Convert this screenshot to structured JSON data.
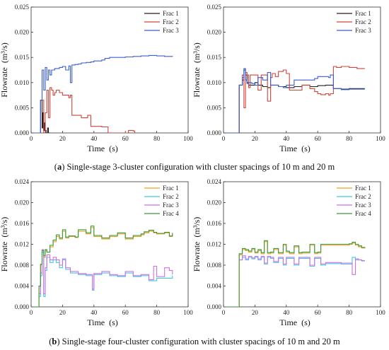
{
  "captions": {
    "a_letter": "a",
    "a_text": " Single-stage 3-cluster configuration with cluster spacings of 10 m and 20 m",
    "b_letter": "b",
    "b_text": " Single-stage four-cluster configuration with cluster spacings of 10 m and 20 m"
  },
  "colors": {
    "frac1_a": "#222222",
    "frac2_a": "#d0443a",
    "frac3_a": "#3a5fcd",
    "frac1_b": "#f0a020",
    "frac2_b": "#40c8e8",
    "frac3_b": "#d070e0",
    "frac4_b": "#3a9a3a"
  },
  "chart_data": [
    {
      "type": "line",
      "xlabel": "Time  (s)",
      "ylabel": "Flowrate  (m³/s)",
      "xlim": [
        0,
        100
      ],
      "ylim": [
        0,
        0.025
      ],
      "xticks": [
        "0",
        "20",
        "40",
        "60",
        "80",
        "100"
      ],
      "yticks": [
        "0.000",
        "0.005",
        "0.010",
        "0.015",
        "0.020",
        "0.025"
      ],
      "legend": "top-right",
      "series": [
        {
          "name": "Frac 1",
          "x": [
            0,
            6,
            7,
            7.5,
            8,
            8.5,
            9,
            9.5,
            10,
            10.5,
            11,
            12
          ],
          "y": [
            0,
            0.0065,
            0.001,
            0.004,
            0.0005,
            0.002,
            0.0005,
            0.0,
            0.0,
            0.001,
            0.0,
            0.0
          ]
        },
        {
          "name": "Frac 2",
          "x": [
            6,
            8,
            9,
            10,
            11,
            12,
            13,
            14,
            15,
            16,
            18,
            20,
            22,
            24,
            25,
            26,
            28,
            30,
            32,
            35,
            36,
            38,
            40,
            42,
            45,
            47,
            49,
            50,
            60,
            62,
            65,
            66
          ],
          "y": [
            0.0065,
            0.0,
            0.004,
            0.0085,
            0.003,
            0.009,
            0.0085,
            0.0075,
            0.008,
            0.0085,
            0.008,
            0.0075,
            0.0075,
            0.007,
            0.0075,
            0.0035,
            0.0035,
            0.0035,
            0.003,
            0.003,
            0.0035,
            0.0013,
            0.0013,
            0.0013,
            0.0012,
            0.0012,
            0.0,
            0.0,
            0.0,
            0.0005,
            0.0004,
            0.0
          ]
        },
        {
          "name": "Frac 3",
          "x": [
            0,
            6,
            7,
            8,
            9,
            10,
            11,
            12,
            13,
            15,
            18,
            20,
            22,
            24,
            25,
            26,
            28,
            30,
            32,
            35,
            38,
            40,
            45,
            47,
            50,
            55,
            60,
            65,
            70,
            75,
            80,
            85,
            90
          ],
          "y": [
            0,
            0.0065,
            0.0125,
            0.0085,
            0.013,
            0.0105,
            0.0125,
            0.0115,
            0.0125,
            0.0128,
            0.013,
            0.0132,
            0.0125,
            0.0133,
            0.01,
            0.0135,
            0.0136,
            0.0137,
            0.0139,
            0.014,
            0.0141,
            0.0143,
            0.0145,
            0.0148,
            0.015,
            0.015,
            0.0151,
            0.0152,
            0.0153,
            0.0154,
            0.0153,
            0.0152,
            0.0153
          ]
        }
      ]
    },
    {
      "type": "line",
      "xlabel": "Time  (s)",
      "ylabel": "Flowrate  (m³/s)",
      "xlim": [
        0,
        100
      ],
      "ylim": [
        0,
        0.025
      ],
      "xticks": [
        "0",
        "20",
        "40",
        "60",
        "80",
        "100"
      ],
      "yticks": [
        "0.000",
        "0.005",
        "0.010",
        "0.015",
        "0.020",
        "0.025"
      ],
      "legend": "top-right",
      "series": [
        {
          "name": "Frac 1",
          "x": [
            0,
            10,
            12,
            13,
            14,
            15,
            16,
            18,
            20,
            22,
            25,
            28,
            30,
            35,
            40,
            45,
            50,
            55,
            60,
            65,
            68,
            70,
            75,
            80,
            85,
            90
          ],
          "y": [
            0,
            0.0095,
            0.0105,
            0.0125,
            0.0115,
            0.01,
            0.0095,
            0.0095,
            0.01,
            0.0095,
            0.0092,
            0.009,
            0.0095,
            0.0092,
            0.009,
            0.0092,
            0.0095,
            0.0092,
            0.0094,
            0.0095,
            0.0095,
            0.0088,
            0.0087,
            0.0088,
            0.0088,
            0.0088
          ]
        },
        {
          "name": "Frac 2",
          "x": [
            0,
            10,
            12,
            13,
            14,
            15,
            16,
            17,
            20,
            22,
            24,
            26,
            28,
            30,
            31,
            33,
            35,
            38,
            40,
            42,
            45,
            50,
            55,
            58,
            60,
            62,
            65,
            67,
            68,
            70,
            72,
            75,
            80,
            85,
            90
          ],
          "y": [
            0,
            0.0095,
            0.0115,
            0.005,
            0.012,
            0.0115,
            0.009,
            0.0115,
            0.0115,
            0.0085,
            0.0115,
            0.0115,
            0.0063,
            0.011,
            0.0118,
            0.0112,
            0.0122,
            0.0125,
            0.0118,
            0.0085,
            0.0085,
            0.0095,
            0.0088,
            0.0082,
            0.0078,
            0.0076,
            0.0078,
            0.0075,
            0.0078,
            0.0132,
            0.013,
            0.0132,
            0.013,
            0.0128,
            0.0128
          ]
        },
        {
          "name": "Frac 3",
          "x": [
            0,
            10,
            12,
            13,
            14,
            15,
            16,
            18,
            20,
            22,
            25,
            28,
            30,
            35,
            38,
            40,
            45,
            50,
            55,
            58,
            60,
            65,
            67,
            68,
            70,
            75,
            80,
            85,
            90
          ],
          "y": [
            0,
            0.0095,
            0.011,
            0.0128,
            0.0105,
            0.0098,
            0.01,
            0.0098,
            0.0095,
            0.011,
            0.0105,
            0.012,
            0.0095,
            0.0092,
            0.009,
            0.0095,
            0.0105,
            0.0105,
            0.0105,
            0.0108,
            0.0112,
            0.0112,
            0.011,
            0.0115,
            0.0088,
            0.0086,
            0.0087,
            0.0087,
            0.0087
          ]
        }
      ]
    },
    {
      "type": "line",
      "xlabel": "Time  (s)",
      "ylabel": "Flowrate  (m³/s)",
      "xlim": [
        0,
        100
      ],
      "ylim": [
        0,
        0.024
      ],
      "xticks": [
        "0",
        "20",
        "40",
        "60",
        "80",
        "100"
      ],
      "yticks": [
        "0.000",
        "0.004",
        "0.008",
        "0.012",
        "0.016",
        "0.020",
        "0.024"
      ],
      "legend": "top-right",
      "series": [
        {
          "name": "Frac 1",
          "x": [
            0,
            5,
            6,
            7,
            8,
            9,
            10,
            12,
            14,
            16,
            18,
            20,
            22,
            24,
            28,
            30,
            35,
            38,
            40,
            45,
            50,
            55,
            60,
            65,
            70,
            72,
            75,
            78,
            80,
            85,
            88,
            90
          ],
          "y": [
            0,
            0.004,
            0.008,
            0.0105,
            0.0095,
            0.0108,
            0.0105,
            0.0115,
            0.0125,
            0.0135,
            0.013,
            0.0145,
            0.0132,
            0.0135,
            0.0133,
            0.0145,
            0.014,
            0.0152,
            0.0135,
            0.013,
            0.0135,
            0.014,
            0.013,
            0.0135,
            0.0138,
            0.0142,
            0.0145,
            0.0142,
            0.014,
            0.0142,
            0.0135,
            0.014
          ]
        },
        {
          "name": "Frac 2",
          "x": [
            5,
            6,
            7,
            8,
            9,
            10,
            12,
            14,
            16,
            18,
            20,
            22,
            25,
            30,
            35,
            38,
            39,
            40,
            45,
            50,
            55,
            60,
            65,
            70,
            75,
            80,
            85,
            90
          ],
          "y": [
            0.002,
            0.006,
            0.0105,
            0.002,
            0.007,
            0.0095,
            0.0085,
            0.009,
            0.0085,
            0.0075,
            0.009,
            0.0072,
            0.0065,
            0.0062,
            0.006,
            0.006,
            0.0032,
            0.0062,
            0.0065,
            0.006,
            0.0058,
            0.0065,
            0.0058,
            0.006,
            0.005,
            0.0055,
            0.0055,
            0.006
          ]
        },
        {
          "name": "Frac 3",
          "x": [
            5,
            6,
            7,
            8,
            9,
            10,
            12,
            14,
            16,
            18,
            20,
            22,
            25,
            30,
            35,
            38,
            39,
            40,
            45,
            50,
            55,
            60,
            65,
            70,
            75,
            78,
            80,
            85,
            88,
            90
          ],
          "y": [
            0.0025,
            0.0065,
            0.011,
            0.0025,
            0.0075,
            0.01,
            0.009,
            0.0095,
            0.009,
            0.008,
            0.0092,
            0.0075,
            0.0068,
            0.0064,
            0.0062,
            0.0062,
            0.0034,
            0.0064,
            0.0068,
            0.0062,
            0.006,
            0.0068,
            0.006,
            0.0062,
            0.0052,
            0.0078,
            0.0058,
            0.0075,
            0.007,
            0.0062
          ]
        },
        {
          "name": "Frac 4",
          "x": [
            0,
            5,
            6,
            7,
            8,
            9,
            10,
            12,
            14,
            16,
            18,
            20,
            22,
            24,
            28,
            30,
            35,
            38,
            40,
            45,
            50,
            55,
            60,
            65,
            70,
            72,
            75,
            78,
            80,
            85,
            88,
            90
          ],
          "y": [
            0,
            0.004,
            0.0082,
            0.0108,
            0.0098,
            0.011,
            0.0105,
            0.0118,
            0.0128,
            0.0138,
            0.0132,
            0.0148,
            0.0134,
            0.0136,
            0.0134,
            0.0148,
            0.0142,
            0.0155,
            0.0137,
            0.0132,
            0.0137,
            0.0142,
            0.0132,
            0.0137,
            0.014,
            0.0144,
            0.0147,
            0.0143,
            0.0141,
            0.0143,
            0.0136,
            0.0142
          ]
        }
      ]
    },
    {
      "type": "line",
      "xlabel": "Time  (s)",
      "ylabel": "Flowrate  (m³/s)",
      "xlim": [
        0,
        100
      ],
      "ylim": [
        0,
        0.024
      ],
      "xticks": [
        "0",
        "20",
        "40",
        "60",
        "80",
        "100"
      ],
      "yticks": [
        "0.000",
        "0.004",
        "0.008",
        "0.012",
        "0.016",
        "0.020",
        "0.024"
      ],
      "legend": "top-right",
      "series": [
        {
          "name": "Frac 1",
          "x": [
            0,
            10,
            12,
            14,
            16,
            18,
            20,
            22,
            24,
            26,
            28,
            30,
            32,
            35,
            38,
            40,
            42,
            45,
            48,
            50,
            55,
            58,
            60,
            62,
            65,
            70,
            75,
            80,
            82,
            84,
            86,
            88,
            90
          ],
          "y": [
            0,
            0.01,
            0.011,
            0.0108,
            0.0105,
            0.011,
            0.0103,
            0.0108,
            0.0102,
            0.0125,
            0.0102,
            0.0103,
            0.011,
            0.0102,
            0.0118,
            0.0105,
            0.0102,
            0.0115,
            0.0102,
            0.0103,
            0.0118,
            0.0102,
            0.0103,
            0.0118,
            0.0118,
            0.0118,
            0.0118,
            0.012,
            0.0122,
            0.0118,
            0.0115,
            0.0113,
            0.0112
          ]
        },
        {
          "name": "Frac 2",
          "x": [
            10,
            12,
            14,
            16,
            18,
            20,
            22,
            24,
            26,
            28,
            30,
            32,
            35,
            38,
            40,
            42,
            45,
            48,
            50,
            55,
            58,
            60,
            62,
            65,
            70,
            75,
            80,
            82,
            84,
            86,
            88,
            90
          ],
          "y": [
            0.009,
            0.0095,
            0.009,
            0.0095,
            0.0092,
            0.0095,
            0.009,
            0.0095,
            0.0082,
            0.0095,
            0.0093,
            0.0085,
            0.0093,
            0.008,
            0.0093,
            0.0093,
            0.008,
            0.0093,
            0.0093,
            0.0078,
            0.0093,
            0.0093,
            0.008,
            0.0083,
            0.0083,
            0.0082,
            0.0082,
            0.0095,
            0.009,
            0.009,
            0.0088,
            0.0088
          ]
        },
        {
          "name": "Frac 3",
          "x": [
            10,
            12,
            14,
            16,
            18,
            20,
            22,
            24,
            26,
            28,
            30,
            32,
            35,
            38,
            40,
            42,
            45,
            48,
            50,
            55,
            58,
            60,
            62,
            65,
            70,
            75,
            80,
            82,
            84,
            86,
            88,
            90
          ],
          "y": [
            0.009,
            0.0098,
            0.0092,
            0.0097,
            0.0094,
            0.0097,
            0.0092,
            0.0097,
            0.0084,
            0.0097,
            0.0095,
            0.0087,
            0.0095,
            0.0082,
            0.0095,
            0.0095,
            0.0082,
            0.0095,
            0.0095,
            0.008,
            0.0095,
            0.0095,
            0.0082,
            0.0085,
            0.0085,
            0.0084,
            0.0084,
            0.0062,
            0.0092,
            0.009,
            0.0089,
            0.0089
          ]
        },
        {
          "name": "Frac 4",
          "x": [
            0,
            10,
            12,
            14,
            16,
            18,
            20,
            22,
            24,
            26,
            28,
            30,
            32,
            35,
            38,
            40,
            42,
            45,
            48,
            50,
            55,
            58,
            60,
            62,
            65,
            70,
            75,
            80,
            82,
            84,
            86,
            88,
            90
          ],
          "y": [
            0,
            0.0102,
            0.0112,
            0.011,
            0.0107,
            0.0112,
            0.0105,
            0.011,
            0.0104,
            0.0127,
            0.0104,
            0.0105,
            0.0112,
            0.0104,
            0.012,
            0.0107,
            0.0104,
            0.0117,
            0.0104,
            0.0105,
            0.012,
            0.0104,
            0.0105,
            0.012,
            0.012,
            0.012,
            0.012,
            0.0121,
            0.0124,
            0.012,
            0.0117,
            0.0114,
            0.0113
          ]
        }
      ]
    }
  ]
}
